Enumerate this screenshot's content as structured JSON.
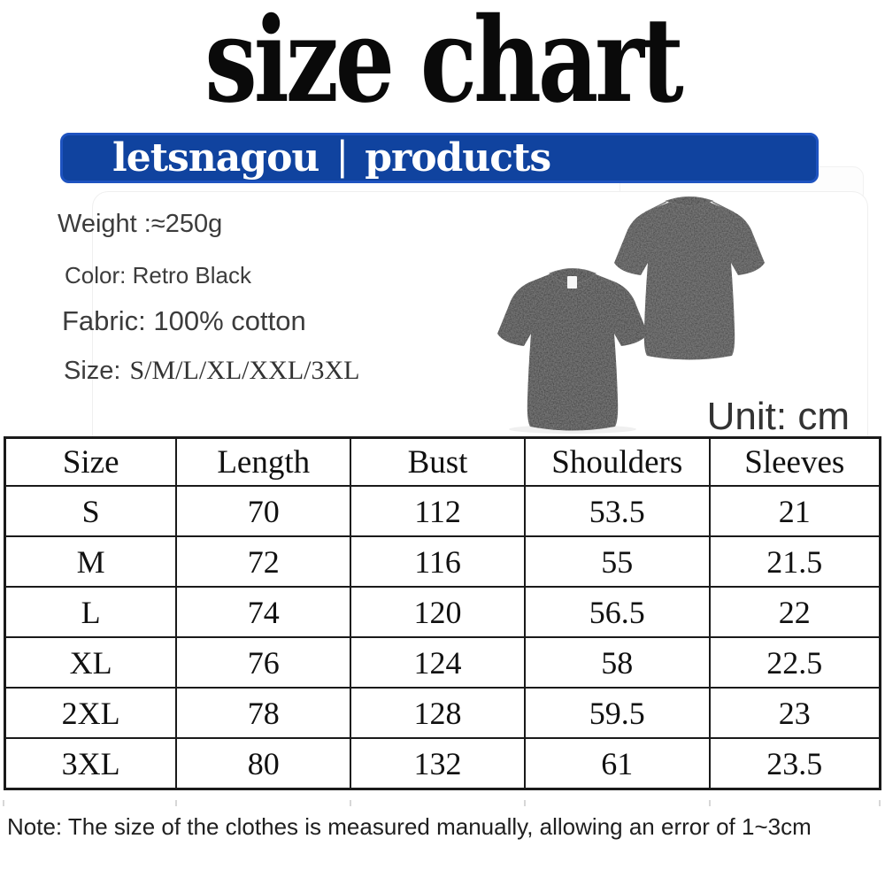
{
  "page": {
    "title": "size chart"
  },
  "banner": {
    "brand": "letsnagou",
    "separator": "|",
    "label": "products",
    "bg_color": "#10439f",
    "border_color": "#1e53c0",
    "text_color": "#ffffff"
  },
  "details": {
    "weight": "Weight :≈250g",
    "color": "Color: Retro Black",
    "fabric": "Fabric: 100% cotton",
    "size_prefix": "Size:",
    "size_values": "S/M/L/XL/XXL/3XL"
  },
  "unit_label": "Unit: cm",
  "table": {
    "headers": [
      "Size",
      "Length",
      "Bust",
      "Shoulders",
      "Sleeves"
    ],
    "rows": [
      [
        "S",
        "70",
        "112",
        "53.5",
        "21"
      ],
      [
        "M",
        "72",
        "116",
        "55",
        "21.5"
      ],
      [
        "L",
        "74",
        "120",
        "56.5",
        "22"
      ],
      [
        "XL",
        "76",
        "124",
        "58",
        "22.5"
      ],
      [
        "2XL",
        "78",
        "128",
        "59.5",
        "23"
      ],
      [
        "3XL",
        "80",
        "132",
        "61",
        "23.5"
      ]
    ]
  },
  "note": "Note: The size of the clothes is measured manually, allowing an error of 1~3cm",
  "product_images": {
    "front": "black-washed-tshirt-front",
    "back": "black-washed-tshirt-back",
    "shirt_color": "#2e2e2e"
  }
}
